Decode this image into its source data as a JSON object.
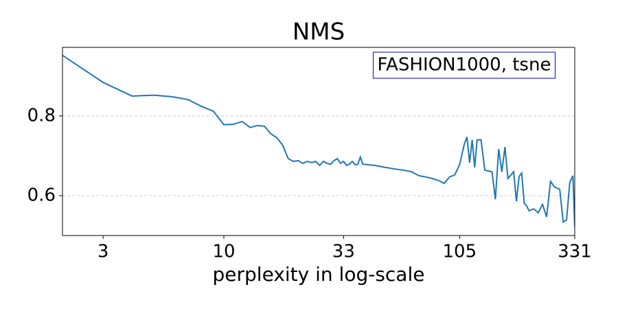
{
  "chart_data": {
    "type": "line",
    "title": "NMS",
    "x_label": "perplexity in log-scale",
    "annotation": "FASHION1000, tsne",
    "x": [
      2,
      3,
      4,
      5,
      6,
      7,
      8,
      9,
      10,
      11,
      12,
      13,
      14,
      15,
      16,
      17,
      18,
      19,
      20,
      21,
      22,
      23,
      24,
      25,
      26,
      27,
      28,
      29,
      30,
      31,
      32,
      33,
      34,
      35,
      36,
      37,
      38,
      39,
      40,
      45,
      50,
      55,
      60,
      65,
      70,
      75,
      80,
      85,
      90,
      95,
      100,
      105,
      110,
      113,
      116,
      119,
      122,
      125,
      130,
      135,
      145,
      150,
      155,
      160,
      165,
      170,
      180,
      185,
      190,
      195,
      200,
      205,
      210,
      220,
      230,
      240,
      250,
      260,
      270,
      285,
      295,
      305,
      315,
      325,
      331
    ],
    "series": [
      {
        "name": "NMS",
        "color": "#1f77b4",
        "values": [
          0.952,
          0.884,
          0.85,
          0.852,
          0.848,
          0.841,
          0.824,
          0.812,
          0.778,
          0.779,
          0.786,
          0.771,
          0.776,
          0.774,
          0.755,
          0.745,
          0.726,
          0.693,
          0.686,
          0.688,
          0.681,
          0.686,
          0.683,
          0.686,
          0.676,
          0.686,
          0.681,
          0.679,
          0.688,
          0.693,
          0.681,
          0.686,
          0.676,
          0.679,
          0.686,
          0.678,
          0.678,
          0.697,
          0.679,
          0.676,
          0.671,
          0.667,
          0.664,
          0.66,
          0.65,
          0.647,
          0.643,
          0.638,
          0.631,
          0.647,
          0.652,
          0.678,
          0.729,
          0.747,
          0.683,
          0.74,
          0.671,
          0.74,
          0.74,
          0.664,
          0.66,
          0.591,
          0.717,
          0.66,
          0.722,
          0.643,
          0.66,
          0.586,
          0.648,
          0.657,
          0.581,
          0.574,
          0.562,
          0.567,
          0.557,
          0.578,
          0.547,
          0.636,
          0.622,
          0.616,
          0.534,
          0.539,
          0.633,
          0.65,
          0.522
        ]
      }
    ],
    "xscale": "log",
    "xlim": [
      2,
      331
    ],
    "xticks": [
      3,
      10,
      33,
      105,
      331
    ],
    "ylim": [
      0.5,
      0.972
    ],
    "yticks": [
      0.6,
      0.8
    ],
    "grid": true
  }
}
